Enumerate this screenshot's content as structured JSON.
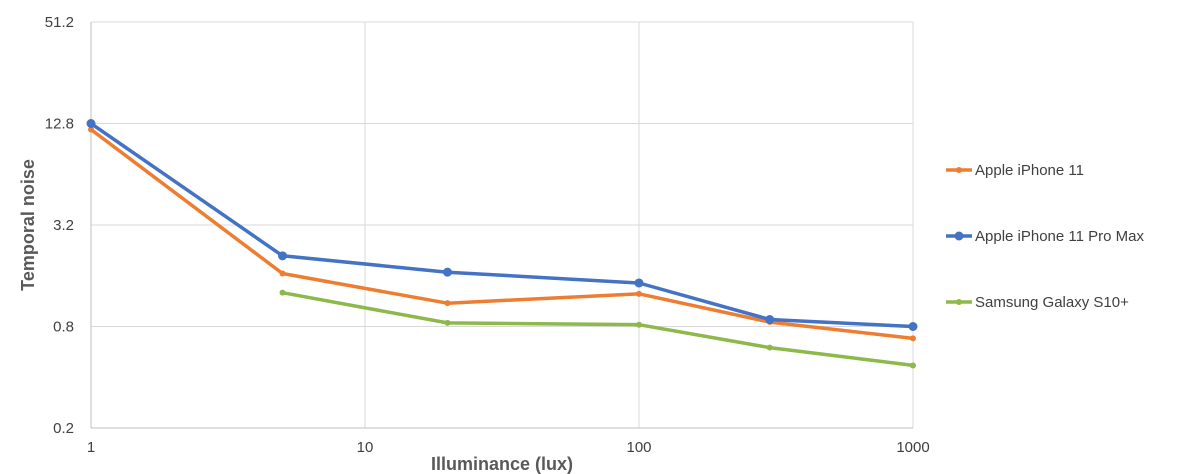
{
  "chart_data": {
    "type": "line",
    "title": "",
    "xlabel": "Illuminance (lux)",
    "ylabel": "Temporal noise",
    "x_scale": "log",
    "y_scale": "log",
    "xlim": [
      1,
      1000
    ],
    "ylim": [
      0.2,
      51.2
    ],
    "x_ticks": [
      "1",
      "10",
      "100",
      "1000"
    ],
    "y_ticks": [
      "0.2",
      "0.8",
      "3.2",
      "12.8",
      "51.2"
    ],
    "grid": true,
    "legend_position": "right",
    "series": [
      {
        "name": "Apple iPhone 11",
        "color": "#ED7D31",
        "x": [
          1,
          5,
          20,
          100,
          300,
          1000
        ],
        "y": [
          11.8,
          1.65,
          1.1,
          1.25,
          0.85,
          0.68
        ]
      },
      {
        "name": "Apple iPhone 11 Pro Max",
        "color": "#4472C4",
        "x": [
          1,
          5,
          20,
          100,
          300,
          1000
        ],
        "y": [
          12.8,
          2.1,
          1.68,
          1.45,
          0.88,
          0.8
        ]
      },
      {
        "name": "Samsung Galaxy S10+",
        "color": "#8DB84A",
        "x": [
          5,
          20,
          100,
          300,
          1000
        ],
        "y": [
          1.27,
          0.84,
          0.82,
          0.6,
          0.47
        ]
      }
    ]
  }
}
